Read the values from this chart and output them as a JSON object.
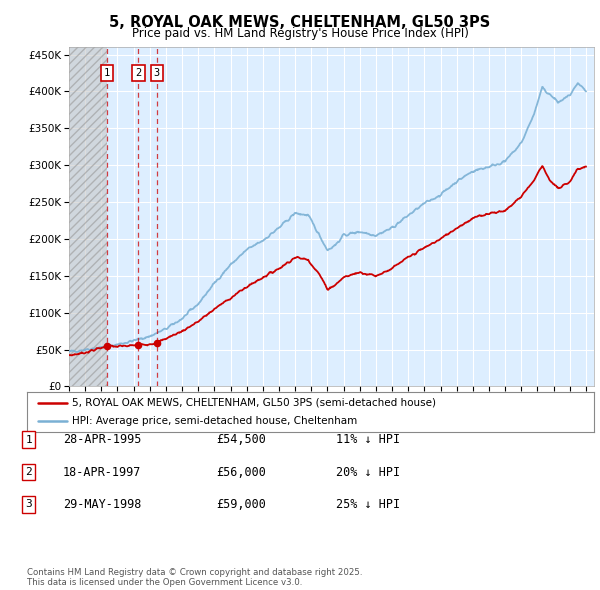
{
  "title": "5, ROYAL OAK MEWS, CHELTENHAM, GL50 3PS",
  "subtitle": "Price paid vs. HM Land Registry's House Price Index (HPI)",
  "ylim": [
    0,
    460000
  ],
  "xlim_start": 1993.0,
  "xlim_end": 2025.5,
  "hatch_end_year": 1995.33,
  "sale_dates": [
    1995.33,
    1997.3,
    1998.42
  ],
  "sale_prices": [
    54500,
    56000,
    59000
  ],
  "sale_labels": [
    "1",
    "2",
    "3"
  ],
  "legend_line1": "5, ROYAL OAK MEWS, CHELTENHAM, GL50 3PS (semi-detached house)",
  "legend_line2": "HPI: Average price, semi-detached house, Cheltenham",
  "table_entries": [
    {
      "num": "1",
      "date": "28-APR-1995",
      "price": "£54,500",
      "hpi": "11% ↓ HPI"
    },
    {
      "num": "2",
      "date": "18-APR-1997",
      "price": "£56,000",
      "hpi": "20% ↓ HPI"
    },
    {
      "num": "3",
      "date": "29-MAY-1998",
      "price": "£59,000",
      "hpi": "25% ↓ HPI"
    }
  ],
  "footnote": "Contains HM Land Registry data © Crown copyright and database right 2025.\nThis data is licensed under the Open Government Licence v3.0.",
  "color_red": "#cc0000",
  "color_blue": "#7ab0d4",
  "color_plot_bg": "#ddeeff",
  "color_box_border": "#cc0000",
  "hpi_anchors": [
    [
      1993.0,
      47000
    ],
    [
      1994.0,
      50000
    ],
    [
      1995.33,
      54000
    ],
    [
      1996.0,
      57000
    ],
    [
      1997.0,
      62000
    ],
    [
      1998.0,
      68000
    ],
    [
      1999.0,
      78000
    ],
    [
      2000.0,
      92000
    ],
    [
      2001.0,
      112000
    ],
    [
      2002.0,
      140000
    ],
    [
      2003.0,
      165000
    ],
    [
      2004.0,
      185000
    ],
    [
      2005.0,
      198000
    ],
    [
      2006.0,
      215000
    ],
    [
      2007.0,
      235000
    ],
    [
      2007.8,
      232000
    ],
    [
      2008.5,
      205000
    ],
    [
      2009.0,
      185000
    ],
    [
      2009.5,
      192000
    ],
    [
      2010.0,
      205000
    ],
    [
      2011.0,
      210000
    ],
    [
      2012.0,
      205000
    ],
    [
      2013.0,
      215000
    ],
    [
      2014.0,
      232000
    ],
    [
      2015.0,
      248000
    ],
    [
      2016.0,
      260000
    ],
    [
      2017.0,
      278000
    ],
    [
      2018.0,
      292000
    ],
    [
      2019.0,
      298000
    ],
    [
      2020.0,
      305000
    ],
    [
      2021.0,
      330000
    ],
    [
      2021.8,
      370000
    ],
    [
      2022.3,
      405000
    ],
    [
      2022.8,
      395000
    ],
    [
      2023.3,
      385000
    ],
    [
      2024.0,
      395000
    ],
    [
      2024.5,
      410000
    ],
    [
      2025.0,
      400000
    ]
  ],
  "red_anchors": [
    [
      1993.0,
      42000
    ],
    [
      1994.0,
      46000
    ],
    [
      1995.33,
      54500
    ],
    [
      1996.0,
      54000
    ],
    [
      1997.3,
      56000
    ],
    [
      1998.42,
      59000
    ],
    [
      1999.0,
      65000
    ],
    [
      2000.0,
      75000
    ],
    [
      2001.0,
      88000
    ],
    [
      2002.0,
      105000
    ],
    [
      2003.0,
      120000
    ],
    [
      2004.0,
      135000
    ],
    [
      2005.0,
      148000
    ],
    [
      2006.0,
      160000
    ],
    [
      2007.0,
      175000
    ],
    [
      2007.8,
      172000
    ],
    [
      2008.5,
      152000
    ],
    [
      2009.0,
      132000
    ],
    [
      2009.5,
      138000
    ],
    [
      2010.0,
      148000
    ],
    [
      2011.0,
      155000
    ],
    [
      2012.0,
      150000
    ],
    [
      2013.0,
      160000
    ],
    [
      2014.0,
      175000
    ],
    [
      2015.0,
      188000
    ],
    [
      2016.0,
      200000
    ],
    [
      2017.0,
      215000
    ],
    [
      2018.0,
      228000
    ],
    [
      2019.0,
      235000
    ],
    [
      2020.0,
      238000
    ],
    [
      2021.0,
      258000
    ],
    [
      2021.8,
      280000
    ],
    [
      2022.3,
      300000
    ],
    [
      2022.8,
      278000
    ],
    [
      2023.3,
      268000
    ],
    [
      2024.0,
      278000
    ],
    [
      2024.5,
      295000
    ],
    [
      2025.0,
      298000
    ]
  ]
}
